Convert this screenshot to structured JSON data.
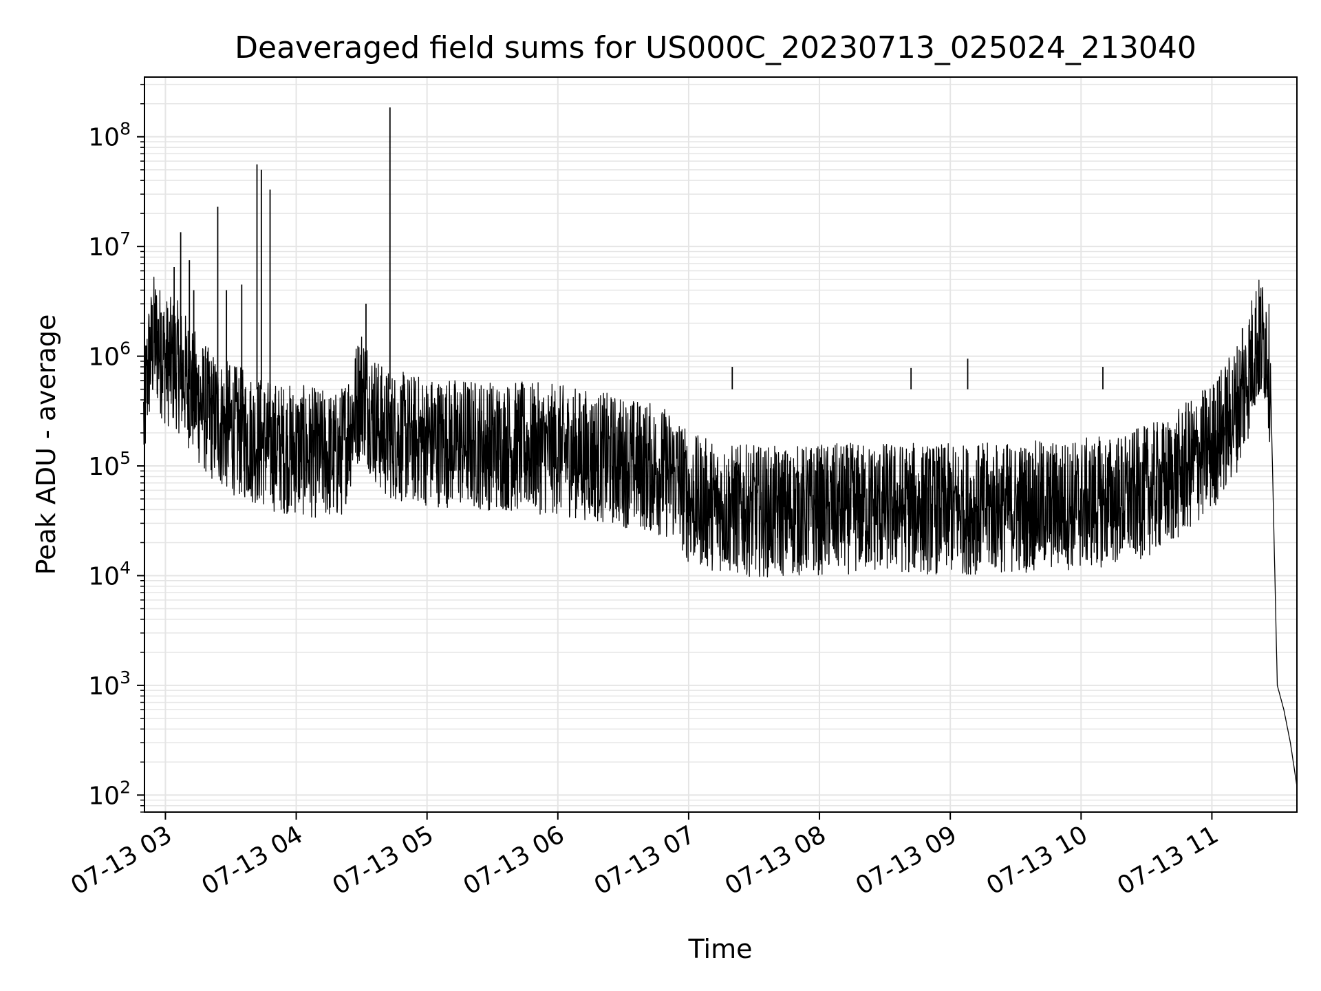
{
  "chart_data": {
    "type": "line",
    "title": "Deaveraged field sums for US000C_20230713_025024_213040",
    "xlabel": "Time",
    "ylabel": "Peak ADU - average",
    "yscale": "log",
    "grid": true,
    "legend": "none",
    "line_color": "#000000",
    "grid_color": "#e5e5e5",
    "xlim": [
      "2023-07-13 02:50:24",
      "2023-07-13 11:39:00"
    ],
    "ylim": [
      70,
      350000000
    ],
    "x_ticks": [
      "2023-07-13 03:00",
      "2023-07-13 04:00",
      "2023-07-13 05:00",
      "2023-07-13 06:00",
      "2023-07-13 07:00",
      "2023-07-13 08:00",
      "2023-07-13 09:00",
      "2023-07-13 10:00",
      "2023-07-13 11:00"
    ],
    "x_tick_labels": [
      "07-13 03",
      "07-13 04",
      "07-13 05",
      "07-13 06",
      "07-13 07",
      "07-13 08",
      "07-13 09",
      "07-13 10",
      "07-13 11"
    ],
    "y_ticks": [
      100,
      1000,
      10000,
      100000,
      1000000,
      10000000,
      100000000
    ],
    "y_tick_labels": [
      {
        "base": "10",
        "exp": "2"
      },
      {
        "base": "10",
        "exp": "3"
      },
      {
        "base": "10",
        "exp": "4"
      },
      {
        "base": "10",
        "exp": "5"
      },
      {
        "base": "10",
        "exp": "6"
      },
      {
        "base": "10",
        "exp": "7"
      },
      {
        "base": "10",
        "exp": "8"
      }
    ],
    "series": [
      {
        "x": [
          "2023-07-13 02:50",
          "2023-07-13 02:52",
          "2023-07-13 02:55",
          "2023-07-13 02:58",
          "2023-07-13 03:00",
          "2023-07-13 03:05",
          "2023-07-13 03:10",
          "2023-07-13 03:15",
          "2023-07-13 03:20",
          "2023-07-13 03:25",
          "2023-07-13 03:30",
          "2023-07-13 03:40",
          "2023-07-13 03:50",
          "2023-07-13 04:00",
          "2023-07-13 04:10",
          "2023-07-13 04:20",
          "2023-07-13 04:30",
          "2023-07-13 04:35",
          "2023-07-13 04:40",
          "2023-07-13 04:50",
          "2023-07-13 05:00",
          "2023-07-13 05:20",
          "2023-07-13 05:40",
          "2023-07-13 06:00",
          "2023-07-13 06:20",
          "2023-07-13 06:40",
          "2023-07-13 06:55",
          "2023-07-13 07:00",
          "2023-07-13 07:20",
          "2023-07-13 07:40",
          "2023-07-13 08:00",
          "2023-07-13 08:30",
          "2023-07-13 09:00",
          "2023-07-13 09:30",
          "2023-07-13 10:00",
          "2023-07-13 10:20",
          "2023-07-13 10:40",
          "2023-07-13 11:00",
          "2023-07-13 11:10",
          "2023-07-13 11:15",
          "2023-07-13 11:20",
          "2023-07-13 11:25",
          "2023-07-13 11:27",
          "2023-07-13 11:30",
          "2023-07-13 11:33",
          "2023-07-13 11:36",
          "2023-07-13 11:39"
        ],
        "y": [
          250000,
          800000,
          1500000,
          1100000,
          900000,
          850000,
          600000,
          400000,
          300000,
          250000,
          220000,
          180000,
          150000,
          140000,
          130000,
          120000,
          500000,
          300000,
          200000,
          180000,
          170000,
          160000,
          150000,
          140000,
          120000,
          100000,
          80000,
          50000,
          40000,
          38000,
          40000,
          42000,
          40000,
          42000,
          45000,
          50000,
          70000,
          150000,
          300000,
          500000,
          1300000,
          1400000,
          500000,
          1000,
          600,
          300,
          120
        ]
      }
    ],
    "spikes": [
      {
        "x": "2023-07-13 02:58",
        "y": 2500000
      },
      {
        "x": "2023-07-13 03:04",
        "y": 6500000
      },
      {
        "x": "2023-07-13 03:07",
        "y": 13500000
      },
      {
        "x": "2023-07-13 03:11",
        "y": 7500000
      },
      {
        "x": "2023-07-13 03:13",
        "y": 4000000
      },
      {
        "x": "2023-07-13 03:24",
        "y": 23000000
      },
      {
        "x": "2023-07-13 03:28",
        "y": 4000000
      },
      {
        "x": "2023-07-13 03:35",
        "y": 4500000
      },
      {
        "x": "2023-07-13 03:42",
        "y": 56000000
      },
      {
        "x": "2023-07-13 03:44",
        "y": 50000000
      },
      {
        "x": "2023-07-13 03:48",
        "y": 33000000
      },
      {
        "x": "2023-07-13 04:32",
        "y": 3000000
      },
      {
        "x": "2023-07-13 04:43",
        "y": 185000000
      },
      {
        "x": "2023-07-13 07:20",
        "y": 800000
      },
      {
        "x": "2023-07-13 08:42",
        "y": 780000
      },
      {
        "x": "2023-07-13 09:08",
        "y": 950000
      },
      {
        "x": "2023-07-13 10:10",
        "y": 800000
      },
      {
        "x": "2023-07-13 11:14",
        "y": 1800000
      },
      {
        "x": "2023-07-13 11:22",
        "y": 3500000
      }
    ]
  }
}
